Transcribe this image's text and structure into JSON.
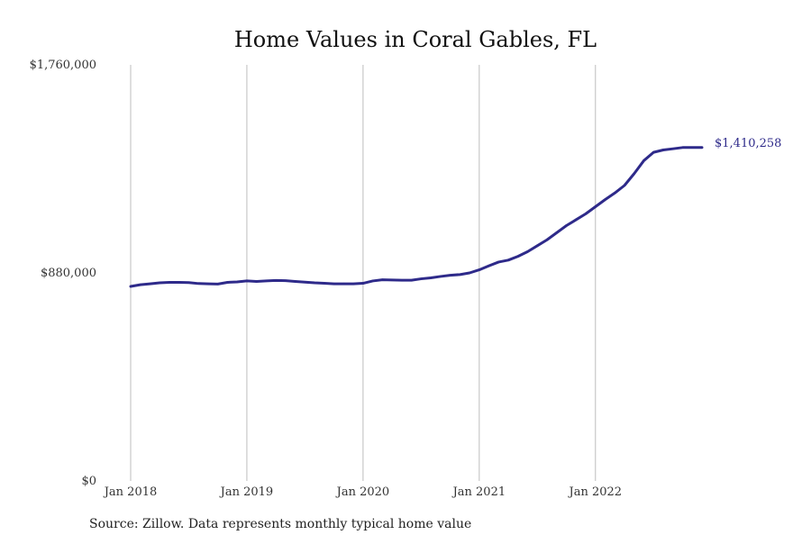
{
  "chart_data": {
    "type": "line",
    "title": "Home Values in Coral Gables, FL",
    "source": "Source: Zillow. Data represents monthly typical home value",
    "xlabel": "",
    "ylabel": "",
    "ylim": [
      0,
      1760000
    ],
    "xlim": [
      "2018-01",
      "2022-12"
    ],
    "y_ticks": [
      {
        "value": 0,
        "label": "$0"
      },
      {
        "value": 880000,
        "label": "$880,000"
      },
      {
        "value": 1760000,
        "label": "$1,760,000"
      }
    ],
    "x_ticks": [
      {
        "value": "2018-01",
        "label": "Jan 2018"
      },
      {
        "value": "2019-01",
        "label": "Jan 2019"
      },
      {
        "value": "2020-01",
        "label": "Jan 2020"
      },
      {
        "value": "2021-01",
        "label": "Jan 2021"
      },
      {
        "value": "2022-01",
        "label": "Jan 2022"
      }
    ],
    "grid": "vertical",
    "legend": "none",
    "series_color": "#2e2a8a",
    "end_label": "$1,410,258",
    "x": [
      "2018-01",
      "2018-02",
      "2018-03",
      "2018-04",
      "2018-05",
      "2018-06",
      "2018-07",
      "2018-08",
      "2018-09",
      "2018-10",
      "2018-11",
      "2018-12",
      "2019-01",
      "2019-02",
      "2019-03",
      "2019-04",
      "2019-05",
      "2019-06",
      "2019-07",
      "2019-08",
      "2019-09",
      "2019-10",
      "2019-11",
      "2019-12",
      "2020-01",
      "2020-02",
      "2020-03",
      "2020-04",
      "2020-05",
      "2020-06",
      "2020-07",
      "2020-08",
      "2020-09",
      "2020-10",
      "2020-11",
      "2020-12",
      "2021-01",
      "2021-02",
      "2021-03",
      "2021-04",
      "2021-05",
      "2021-06",
      "2021-07",
      "2021-08",
      "2021-09",
      "2021-10",
      "2021-11",
      "2021-12",
      "2022-01",
      "2022-02",
      "2022-03",
      "2022-04",
      "2022-05",
      "2022-06",
      "2022-07",
      "2022-08",
      "2022-09",
      "2022-10",
      "2022-11",
      "2022-12"
    ],
    "values": [
      823000,
      830000,
      834000,
      838000,
      840000,
      840000,
      839000,
      835000,
      834000,
      833000,
      840000,
      842000,
      846000,
      844000,
      846000,
      848000,
      847000,
      844000,
      841000,
      838000,
      836000,
      834000,
      834000,
      834000,
      836000,
      846000,
      851000,
      850000,
      849000,
      849000,
      855000,
      859000,
      865000,
      870000,
      873000,
      880000,
      893000,
      910000,
      926000,
      934000,
      950000,
      970000,
      995000,
      1020000,
      1050000,
      1080000,
      1105000,
      1130000,
      1160000,
      1190000,
      1218000,
      1250000,
      1300000,
      1355000,
      1390000,
      1400000,
      1405000,
      1410258,
      1410258,
      1410258
    ]
  }
}
